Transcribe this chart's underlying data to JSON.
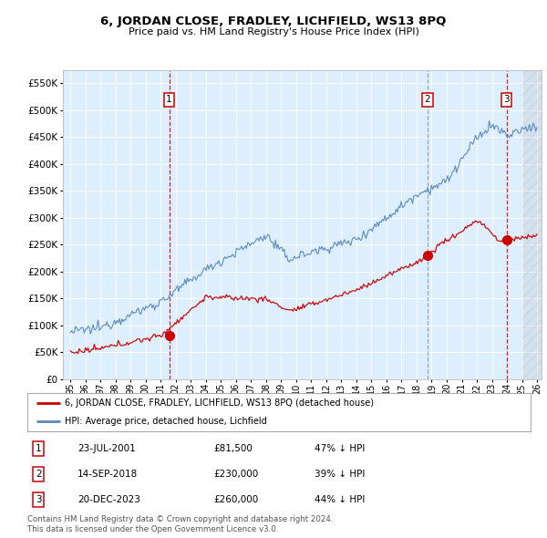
{
  "title": "6, JORDAN CLOSE, FRADLEY, LICHFIELD, WS13 8PQ",
  "subtitle": "Price paid vs. HM Land Registry's House Price Index (HPI)",
  "background_color": "#ffffff",
  "plot_bg_color": "#ddeeff",
  "grid_color": "#ffffff",
  "ylim": [
    0,
    575000
  ],
  "yticks": [
    0,
    50000,
    100000,
    150000,
    200000,
    250000,
    300000,
    350000,
    400000,
    450000,
    500000,
    550000
  ],
  "xlim_start": 1994.5,
  "xlim_end": 2026.3,
  "sale_dates": [
    2001.56,
    2018.71,
    2023.97
  ],
  "sale_prices": [
    81500,
    230000,
    260000
  ],
  "sale_labels": [
    "1",
    "2",
    "3"
  ],
  "sale_line_color": "#cc0000",
  "hpi_line_color": "#5588bb",
  "legend_sale_label": "6, JORDAN CLOSE, FRADLEY, LICHFIELD, WS13 8PQ (detached house)",
  "legend_hpi_label": "HPI: Average price, detached house, Lichfield",
  "table_entries": [
    {
      "label": "1",
      "date": "23-JUL-2001",
      "price": "£81,500",
      "pct": "47% ↓ HPI"
    },
    {
      "label": "2",
      "date": "14-SEP-2018",
      "price": "£230,000",
      "pct": "39% ↓ HPI"
    },
    {
      "label": "3",
      "date": "20-DEC-2023",
      "price": "£260,000",
      "pct": "44% ↓ HPI"
    }
  ],
  "footer": "Contains HM Land Registry data © Crown copyright and database right 2024.\nThis data is licensed under the Open Government Licence v3.0.",
  "vline_colors": [
    "#cc0000",
    "#8899aa",
    "#cc0000"
  ],
  "vline_styles": [
    "--",
    "--",
    "--"
  ]
}
